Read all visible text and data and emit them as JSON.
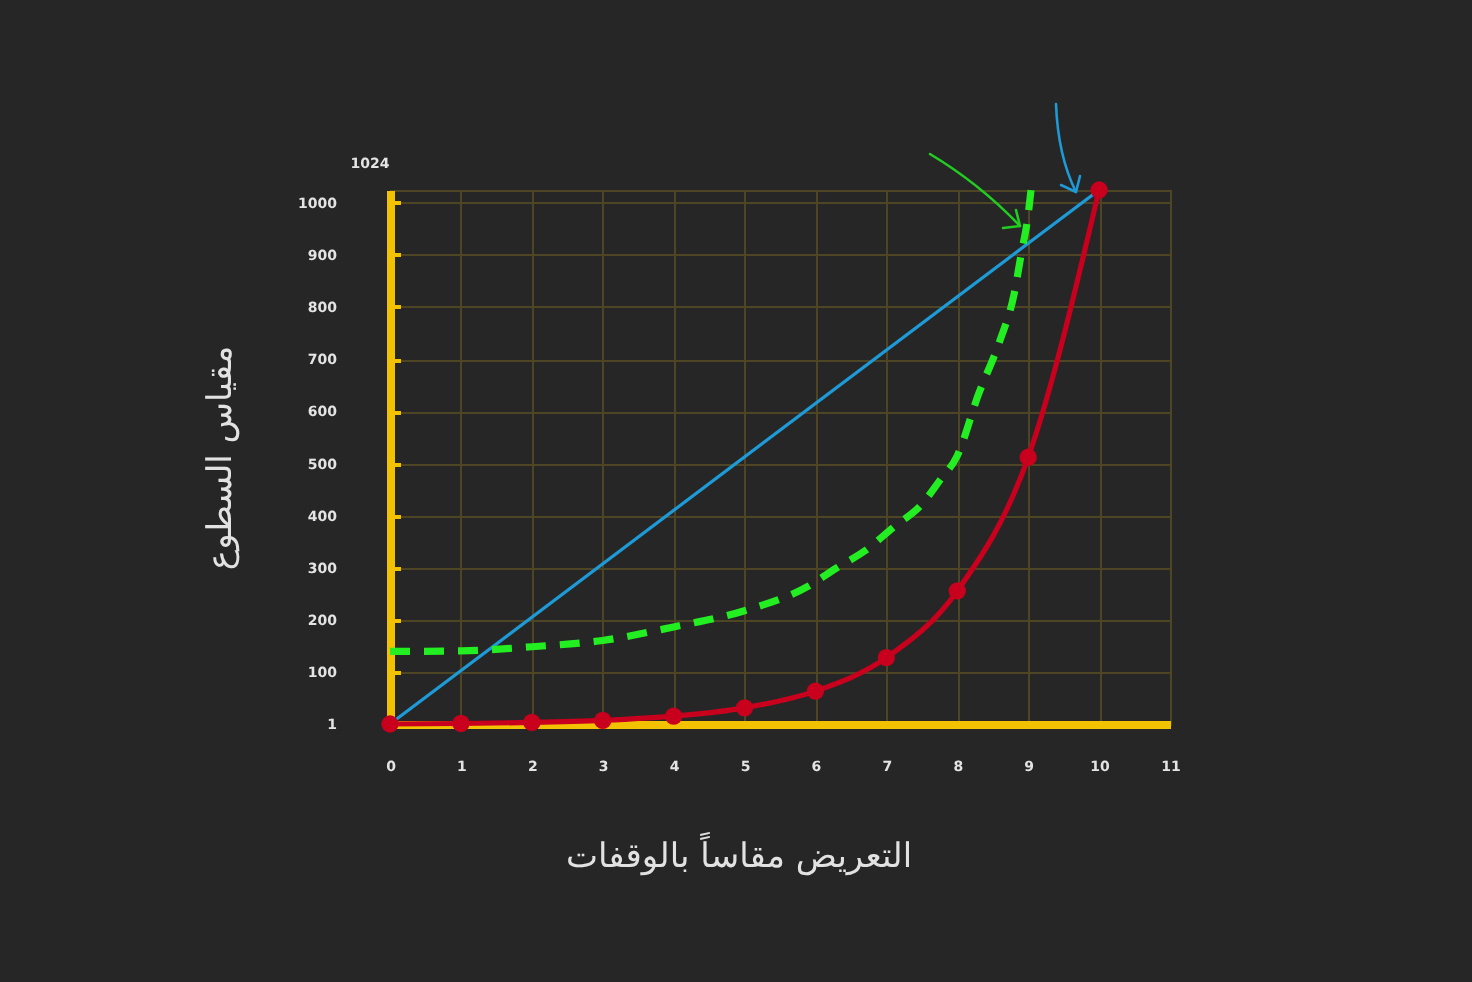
{
  "chart_data": {
    "type": "line",
    "xlabel": "التعريض مقاساً بالوقفات",
    "ylabel": "مقياس السطوع",
    "annotations": [
      "1024"
    ],
    "xlim": [
      0,
      11
    ],
    "xticks": [
      0,
      1,
      2,
      3,
      4,
      5,
      6,
      7,
      8,
      9,
      10,
      11
    ],
    "ylim": [
      1,
      1024
    ],
    "yticks": [
      1,
      100,
      200,
      300,
      400,
      500,
      600,
      700,
      800,
      900,
      1000
    ],
    "grid": true,
    "series": [
      {
        "color": "#c8001e",
        "marker": "circle",
        "line_style": "solid",
        "x": [
          0,
          1,
          2,
          3,
          4,
          5,
          6,
          7,
          8,
          9,
          10
        ],
        "values": [
          1,
          2,
          4,
          8,
          16,
          32,
          64,
          128,
          256,
          512,
          1024
        ]
      },
      {
        "color": "#1e9ad6",
        "line_style": "solid",
        "x": [
          0,
          10
        ],
        "values": [
          1,
          1024
        ]
      },
      {
        "color": "#22ee22",
        "line_style": "dashed",
        "x": [
          0,
          1,
          2,
          3,
          4,
          5,
          5.9,
          6.3,
          6.7,
          7.1,
          7.5,
          7.75,
          8,
          8.3,
          8.6,
          8.8,
          8.9,
          9,
          9.04
        ],
        "values": [
          140,
          141,
          149,
          161,
          187,
          218,
          265,
          300,
          333,
          378,
          422,
          467,
          515,
          633,
          735,
          824,
          900,
          977,
          1024
        ]
      }
    ]
  }
}
